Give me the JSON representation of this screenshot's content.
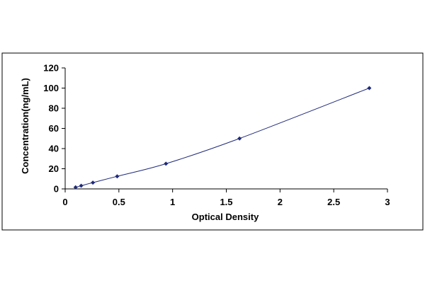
{
  "chart_data": {
    "type": "scatter",
    "title": "",
    "xlabel": "Optical Density",
    "ylabel": "Concentration(ng/mL)",
    "xlim": [
      0,
      3
    ],
    "ylim": [
      0,
      120
    ],
    "x_ticks": [
      0,
      0.5,
      1,
      1.5,
      2,
      2.5,
      3
    ],
    "x_tick_labels": [
      "0",
      "0.5",
      "1",
      "1.5",
      "2",
      "2.5",
      "3"
    ],
    "y_ticks": [
      0,
      20,
      40,
      60,
      80,
      100,
      120
    ],
    "y_tick_labels": [
      "0",
      "20",
      "40",
      "60",
      "80",
      "100",
      "120"
    ],
    "grid": false,
    "legend": "none",
    "marker_color": "#1f2a7a",
    "line_color": "#1f2a7a",
    "series": [
      {
        "trendline": true,
        "x": [
          0.097,
          0.149,
          0.258,
          0.484,
          0.938,
          1.623,
          2.831
        ],
        "y": [
          1.56,
          3.12,
          6.25,
          12.5,
          25,
          50,
          100
        ]
      }
    ]
  }
}
